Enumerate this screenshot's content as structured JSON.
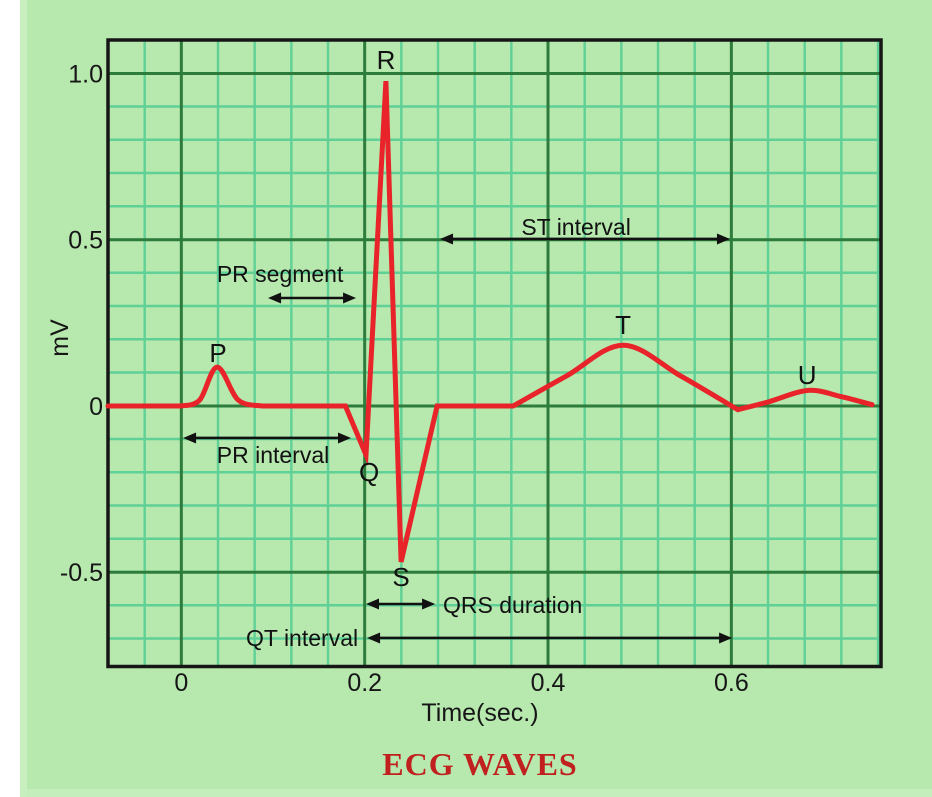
{
  "page": {
    "background_color": "#b7e8ae",
    "left_margin_color": "#ffffff",
    "title": "ECG WAVES",
    "title_color": "#c0211f"
  },
  "chart_data": {
    "type": "line",
    "title": "ECG WAVES",
    "xlabel": "Time(sec.)",
    "ylabel": "mV",
    "xlim": [
      -0.08,
      0.7635
    ],
    "ylim": [
      -0.783,
      1.101
    ],
    "grid": {
      "visible": true,
      "minor_x_step_sec": 0.04,
      "minor_y_step_mv": 0.1,
      "major_x_step_sec": 0.2,
      "major_y_step_mv": 0.5,
      "minor_color": "#5fd096",
      "major_color": "#2e7c3c",
      "paper_color": "#b7e8ae"
    },
    "line_color": "#e8232a",
    "x_ticks": [
      {
        "label": "0",
        "value": 0
      },
      {
        "label": "0.2",
        "value": 0.2
      },
      {
        "label": "0.4",
        "value": 0.4
      },
      {
        "label": "0.6",
        "value": 0.6
      }
    ],
    "y_ticks": [
      {
        "label": "1.0",
        "value": 1.0
      },
      {
        "label": "0.5",
        "value": 0.5
      },
      {
        "label": "0",
        "value": 0
      },
      {
        "label": "-0.5",
        "value": -0.5
      }
    ],
    "waveform_segments": [
      {
        "type": "line",
        "pts": [
          [
            -0.08,
            0
          ],
          [
            0.0,
            0
          ]
        ]
      },
      {
        "type": "curve",
        "pts": [
          [
            0.0,
            0
          ],
          [
            0.02,
            0.018
          ],
          [
            0.0392,
            0.117
          ],
          [
            0.062,
            0.018
          ],
          [
            0.088,
            0
          ]
        ]
      },
      {
        "type": "line",
        "pts": [
          [
            0.088,
            0
          ],
          [
            0.179,
            0
          ]
        ]
      },
      {
        "type": "line",
        "pts": [
          [
            0.179,
            0
          ],
          [
            0.2015,
            -0.147
          ]
        ]
      },
      {
        "type": "line",
        "pts": [
          [
            0.2015,
            -0.147
          ],
          [
            0.2232,
            0.977
          ]
        ]
      },
      {
        "type": "line",
        "pts": [
          [
            0.2232,
            0.977
          ],
          [
            0.2397,
            -0.469
          ]
        ]
      },
      {
        "type": "line",
        "pts": [
          [
            0.2397,
            -0.469
          ],
          [
            0.279,
            0
          ]
        ]
      },
      {
        "type": "line",
        "pts": [
          [
            0.279,
            0
          ],
          [
            0.362,
            0
          ]
        ]
      },
      {
        "type": "curve",
        "pts": [
          [
            0.362,
            0
          ],
          [
            0.42,
            0.09
          ],
          [
            0.4819,
            0.183
          ],
          [
            0.545,
            0.09
          ],
          [
            0.607,
            -0.011
          ]
        ]
      },
      {
        "type": "curve",
        "pts": [
          [
            0.607,
            -0.011
          ],
          [
            0.64,
            0.012
          ],
          [
            0.6837,
            0.047
          ],
          [
            0.72,
            0.028
          ],
          [
            0.7535,
            0.004
          ]
        ]
      }
    ],
    "wave_labels": [
      {
        "text": "P",
        "value_t": 0.039,
        "value_mv": 0.117,
        "label_t": 0.04,
        "label_mv": 0.132
      },
      {
        "text": "Q",
        "value_t": 0.202,
        "value_mv": -0.147,
        "label_t": 0.2048,
        "label_mv": -0.2256
      },
      {
        "text": "R",
        "value_t": 0.223,
        "value_mv": 0.977,
        "label_t": 0.2233,
        "label_mv": 1.0135
      },
      {
        "text": "S",
        "value_t": 0.24,
        "value_mv": -0.469,
        "label_t": 0.2397,
        "label_mv": -0.5414
      },
      {
        "text": "T",
        "value_t": 0.482,
        "value_mv": 0.183,
        "label_t": 0.4819,
        "label_mv": 0.2165
      },
      {
        "text": "U",
        "value_t": 0.684,
        "value_mv": 0.047,
        "label_t": 0.6826,
        "label_mv": 0.0662
      }
    ],
    "annotations": [
      {
        "text": "PR segment",
        "arrow": {
          "t1": 0.0946,
          "t2": 0.1906,
          "mv": 0.3248
        },
        "label": {
          "t": 0.1077,
          "mv": 0.373,
          "anchor": "middle"
        }
      },
      {
        "text": "PR interval",
        "arrow": {
          "t1": 0.0019,
          "t2": 0.1851,
          "mv": -0.0962
        },
        "label": {
          "t": 0.1,
          "mv": -0.1714,
          "anchor": "middle"
        }
      },
      {
        "text": "ST interval",
        "arrow": {
          "t1": 0.2822,
          "t2": 0.5985,
          "mv": 0.5023
        },
        "label": {
          "t": 0.4306,
          "mv": 0.5143,
          "anchor": "middle"
        }
      },
      {
        "text": "QRS duration",
        "arrow": {
          "t1": 0.2015,
          "t2": 0.2768,
          "mv": -0.5955
        },
        "label": {
          "t": 0.2855,
          "mv": -0.6226,
          "anchor": "start"
        }
      },
      {
        "text": "QT interval",
        "arrow": {
          "t1": 0.2026,
          "t2": 0.6008,
          "mv": -0.6977
        },
        "label": {
          "t": 0.1928,
          "mv": -0.7218,
          "anchor": "end"
        }
      }
    ]
  }
}
